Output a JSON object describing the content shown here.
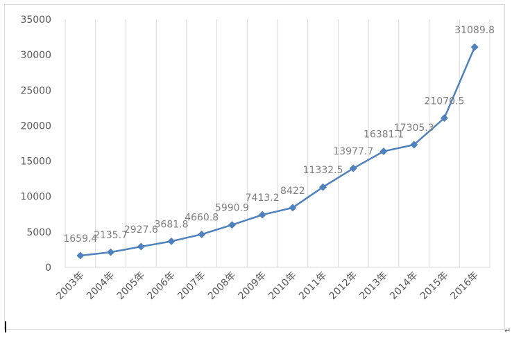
{
  "chart_data": {
    "type": "line",
    "categories": [
      "2003年",
      "2004年",
      "2005年",
      "2006年",
      "2007年",
      "2008年",
      "2009年",
      "2010年",
      "2011年",
      "2012年",
      "2013年",
      "2014年",
      "2015年",
      "2016年"
    ],
    "series": [
      {
        "values": [
          1659.4,
          2135.7,
          2927.6,
          3681.8,
          4660.8,
          5990.9,
          7413.2,
          8422,
          11332.5,
          13977.7,
          16381.1,
          17305.3,
          21070.5,
          31089.8
        ],
        "labels": [
          "1659.4",
          "2135.7",
          "2927.6",
          "3681.8",
          "4660.8",
          "5990.9",
          "7413.2",
          "8422",
          "11332.5",
          "13977.7",
          "16381.1",
          "17305.3",
          "21070.5",
          "31089.8"
        ],
        "color": "#4f81bd",
        "marker": "diamond"
      }
    ],
    "yticks": [
      "0",
      "5000",
      "10000",
      "15000",
      "20000",
      "25000",
      "30000",
      "35000"
    ],
    "ylim": [
      0,
      35000
    ],
    "grid": "vertical",
    "legend": "none",
    "colors": {
      "line": "#4f81bd",
      "grid": "#d9d9d9",
      "axis": "#d9d9d9"
    }
  },
  "doc_marks": {
    "return_mark": "↵"
  }
}
